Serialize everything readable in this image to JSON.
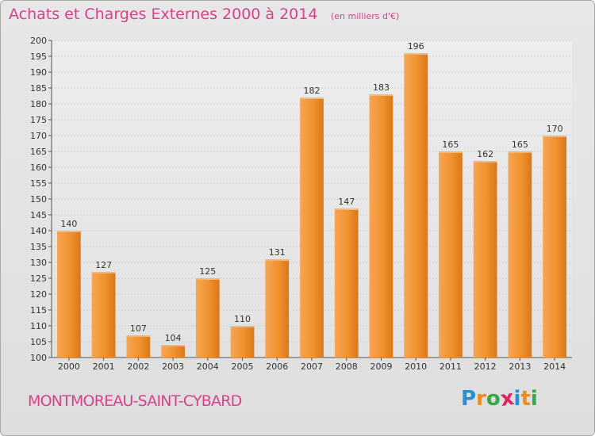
{
  "chart_data": {
    "type": "bar",
    "title": "Achats et Charges Externes 2000 à 2014",
    "subtitle": "(en milliers d'€)",
    "categories": [
      "2000",
      "2001",
      "2002",
      "2003",
      "2004",
      "2005",
      "2006",
      "2007",
      "2008",
      "2009",
      "2010",
      "2011",
      "2012",
      "2013",
      "2014"
    ],
    "values": [
      140,
      127,
      107,
      104,
      125,
      110,
      131,
      182,
      147,
      183,
      196,
      165,
      162,
      165,
      170
    ],
    "ylim": [
      100,
      200
    ],
    "yticks": [
      100,
      105,
      110,
      115,
      120,
      125,
      130,
      135,
      140,
      145,
      150,
      155,
      160,
      165,
      170,
      175,
      180,
      185,
      190,
      195,
      200
    ],
    "grid": true,
    "bar_color": "#f0922e",
    "xlabel": "",
    "ylabel": ""
  },
  "footer": {
    "commune": "MONTMOREAU-SAINT-CYBARD",
    "logo_letters": [
      "P",
      "r",
      "o",
      "x",
      "i",
      "t",
      "i"
    ],
    "logo_colors": [
      "#2a8fd0",
      "#f08a1e",
      "#3aa64a",
      "#e0245e",
      "#2a8fd0",
      "#f08a1e",
      "#3aa64a"
    ]
  }
}
